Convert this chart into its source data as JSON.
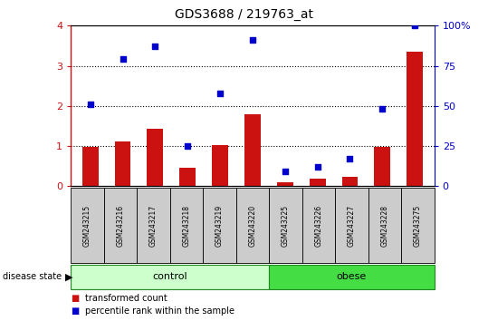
{
  "title": "GDS3688 / 219763_at",
  "samples": [
    "GSM243215",
    "GSM243216",
    "GSM243217",
    "GSM243218",
    "GSM243219",
    "GSM243220",
    "GSM243225",
    "GSM243226",
    "GSM243227",
    "GSM243228",
    "GSM243275"
  ],
  "transformed_count": [
    0.97,
    1.12,
    1.42,
    0.47,
    1.02,
    1.8,
    0.1,
    0.18,
    0.23,
    0.97,
    3.35
  ],
  "percentile_rank": [
    51,
    79,
    87,
    25,
    58,
    91,
    9,
    12,
    17,
    48,
    100
  ],
  "groups": [
    {
      "label": "control",
      "n": 6,
      "color": "#ccffcc"
    },
    {
      "label": "obese",
      "n": 5,
      "color": "#44dd44"
    }
  ],
  "ylim_left": [
    0,
    4
  ],
  "ylim_right": [
    0,
    100
  ],
  "yticks_left": [
    0,
    1,
    2,
    3,
    4
  ],
  "yticks_right": [
    0,
    25,
    50,
    75,
    100
  ],
  "bar_color": "#cc1111",
  "scatter_color": "#0000cc",
  "bg_color": "#ffffff",
  "tick_area_color": "#cccccc",
  "legend_items": [
    "transformed count",
    "percentile rank within the sample"
  ],
  "legend_colors": [
    "#cc1111",
    "#0000cc"
  ]
}
